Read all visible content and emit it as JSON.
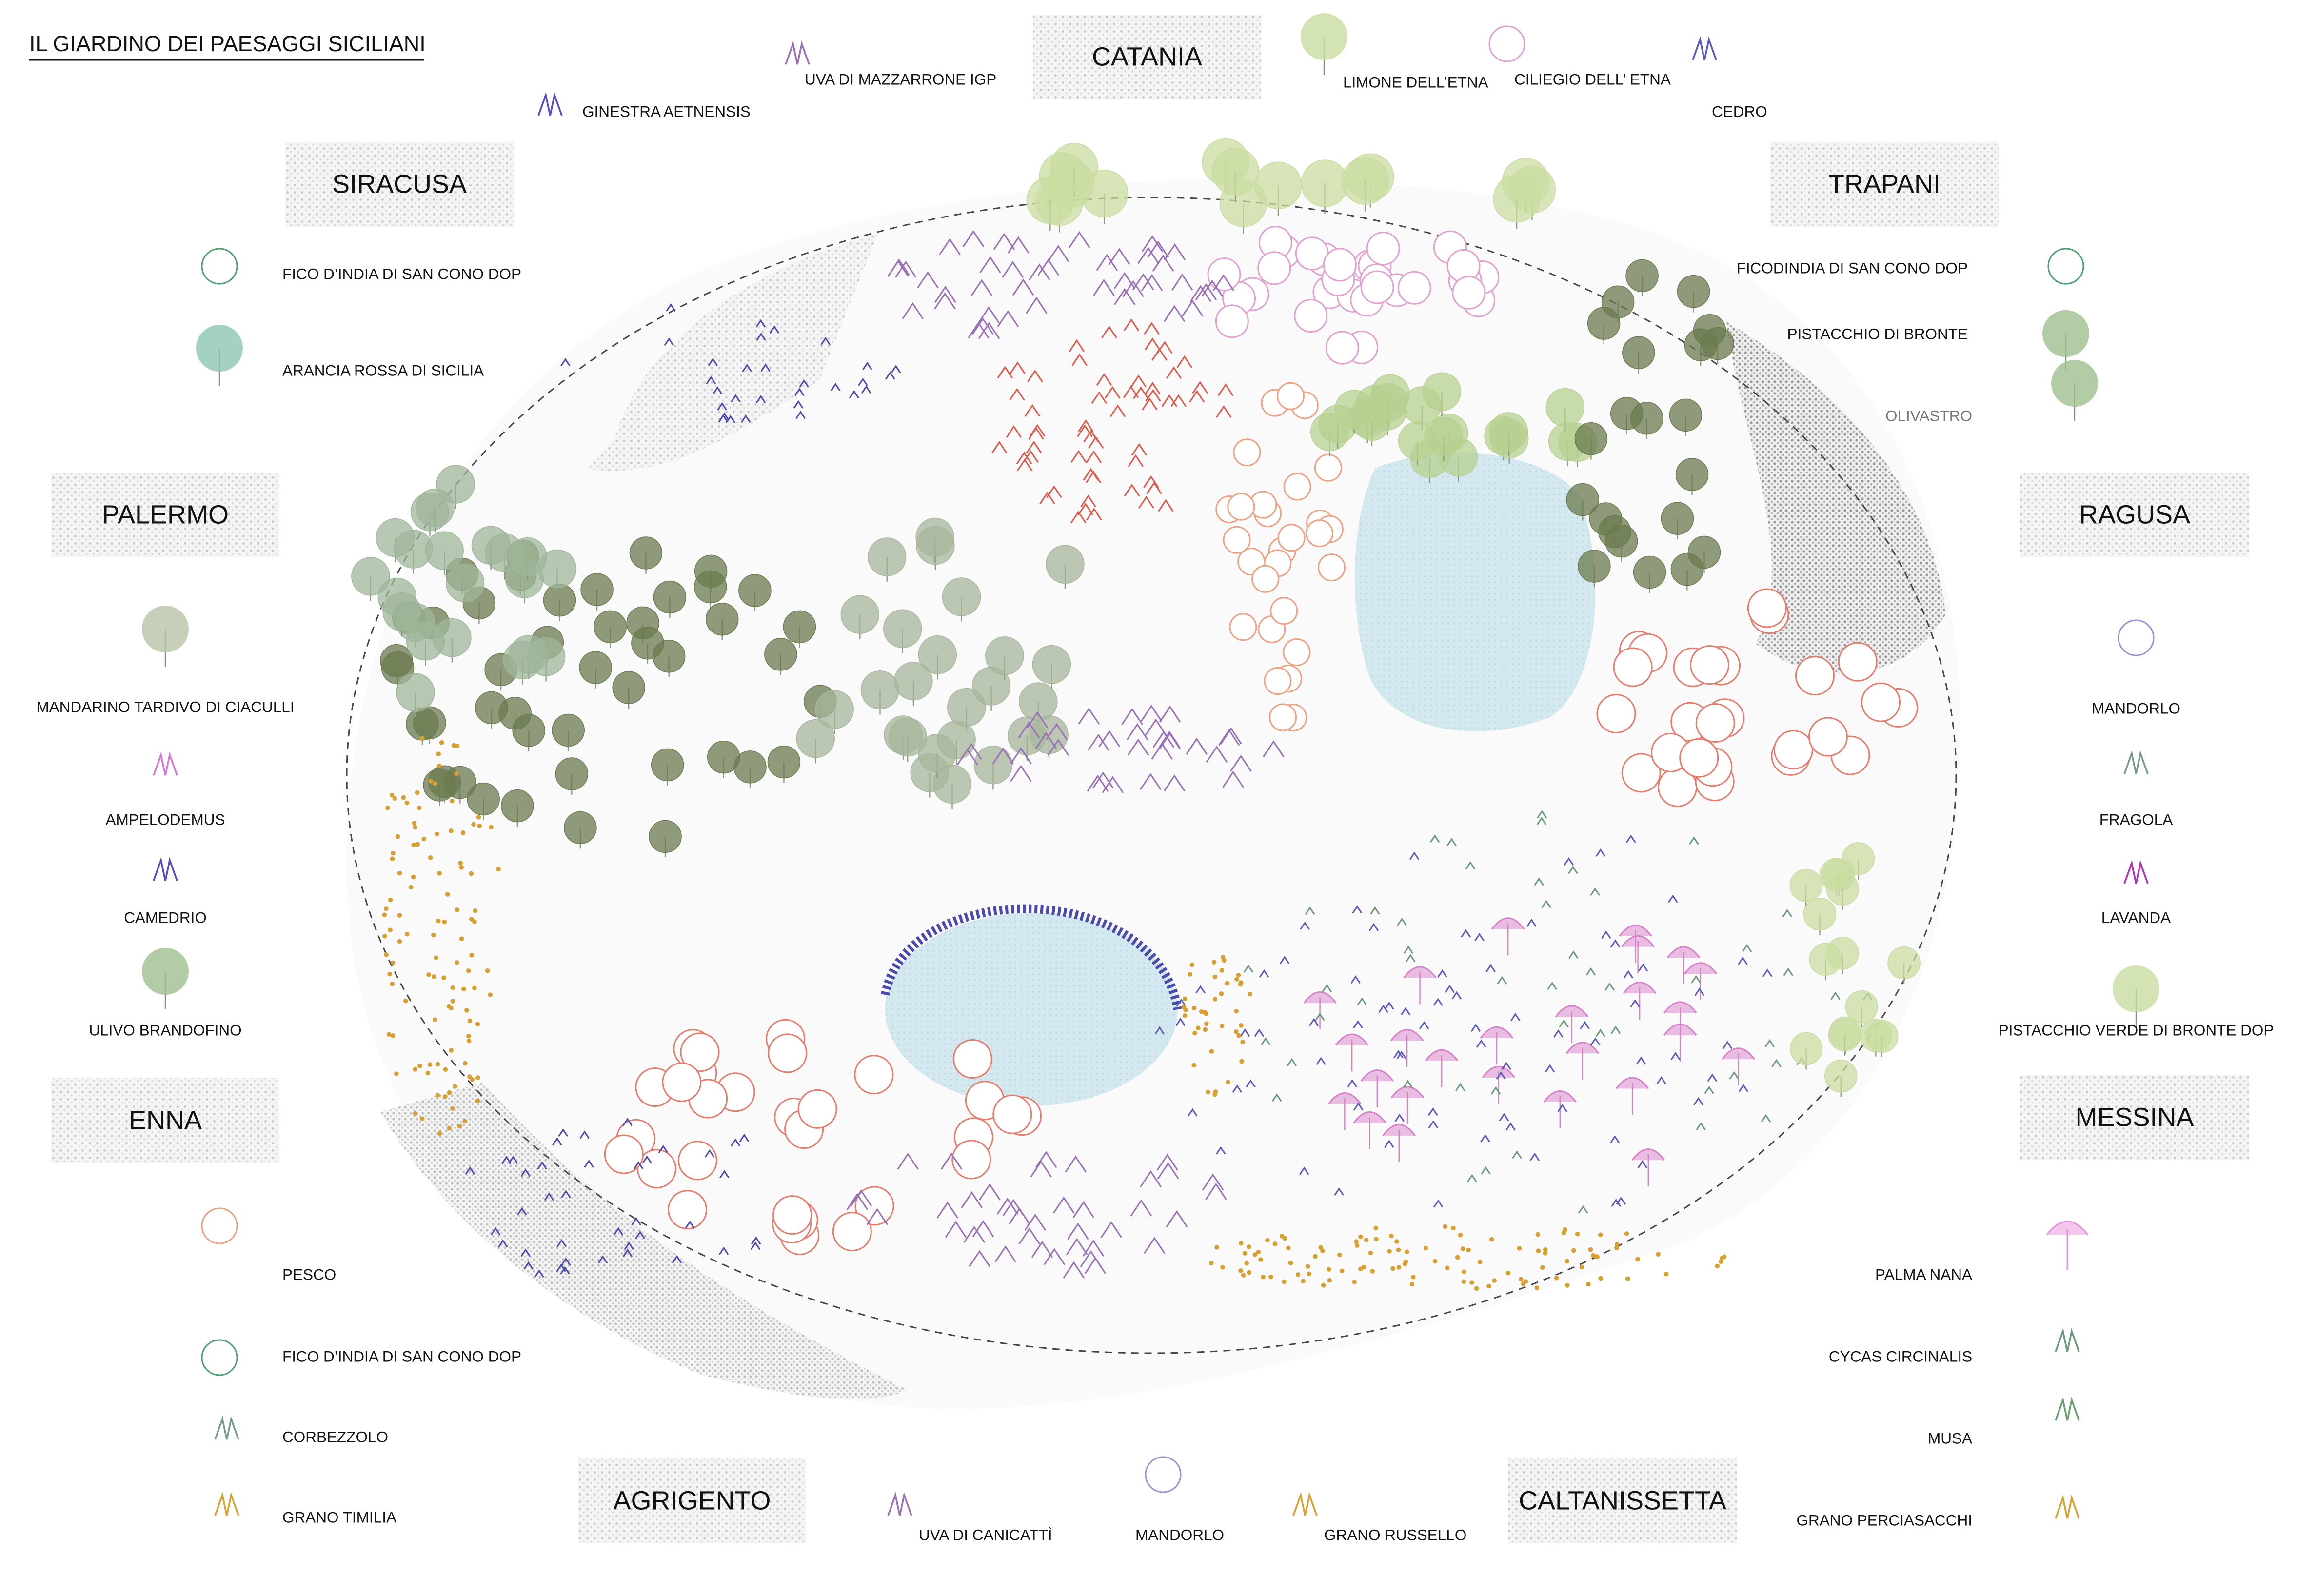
{
  "title": "IL GIARDINO DEI PAESAGGI SICILIANI",
  "regions": [
    {
      "label": "CATANIA",
      "plants": [
        "GINESTRA AETNENSIS",
        "UVA DI MAZZARRONE IGP",
        "LIMONE DELL’ETNA",
        "CILIEGIO DELL’ ETNA",
        "CEDRO"
      ]
    },
    {
      "label": "SIRACUSA",
      "plants": [
        "FICO D’INDIA DI SAN CONO DOP",
        "ARANCIA ROSSA DI SICILIA"
      ]
    },
    {
      "label": "PALERMO",
      "plants": [
        "MANDARINO TARDIVO DI CIACULLI",
        "AMPELODEMUS",
        "CAMEDRIO",
        "ULIVO BRANDOFINO"
      ]
    },
    {
      "label": "ENNA",
      "plants": [
        "PESCO",
        "FICO D’INDIA DI SAN CONO DOP",
        "CORBEZZOLO",
        "GRANO TIMILIA"
      ]
    },
    {
      "label": "TRAPANI",
      "plants": [
        "FICODINDIA DI SAN CONO DOP",
        "PISTACCHIO DI BRONTE",
        "OLIVASTRO"
      ]
    },
    {
      "label": "RAGUSA",
      "plants": [
        "MANDORLO",
        "FRAGOLA",
        "LAVANDA",
        "PISTACCHIO VERDE DI BRONTE DOP"
      ]
    },
    {
      "label": "MESSINA",
      "plants": [
        "PALMA NANA",
        "CYCAS CIRCINALIS",
        "MUSA",
        "GRANO PERCIASACCHI"
      ]
    },
    {
      "label": "AGRIGENTO",
      "plants": [
        "UVA DI CANICATTÌ",
        "MANDORLO",
        "GRANO RUSSELLO"
      ]
    },
    {
      "label": "CALTANISSETTA"
    }
  ]
}
